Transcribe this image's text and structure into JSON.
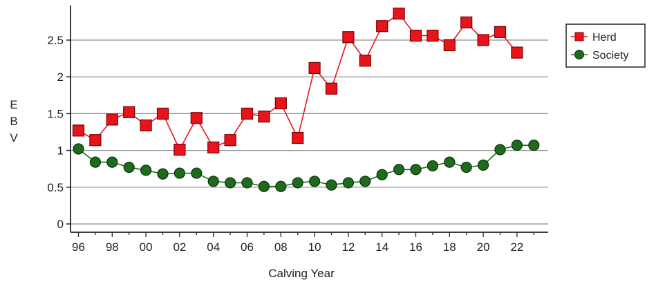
{
  "chart_data": {
    "type": "line",
    "xlabel": "Calving Year",
    "ylabel": "E B V",
    "ylabel_letters": [
      "E",
      "B",
      "V"
    ],
    "x": [
      "96",
      "97",
      "98",
      "99",
      "00",
      "01",
      "02",
      "03",
      "04",
      "05",
      "06",
      "07",
      "08",
      "09",
      "10",
      "11",
      "12",
      "13",
      "14",
      "15",
      "16",
      "17",
      "18",
      "19",
      "20",
      "21",
      "22",
      "23"
    ],
    "x_tick_labels": [
      "96",
      "98",
      "00",
      "02",
      "04",
      "06",
      "08",
      "10",
      "12",
      "14",
      "16",
      "18",
      "20",
      "22"
    ],
    "y_ticks": [
      "0",
      "0.5",
      "1",
      "1.5",
      "2",
      "2.5"
    ],
    "ylim": [
      -0.1,
      2.95
    ],
    "grid": true,
    "legend_position": "top-right",
    "series": [
      {
        "name": "Herd",
        "color": "#e8141c",
        "marker": "square",
        "values": [
          1.27,
          1.14,
          1.42,
          1.52,
          1.34,
          1.5,
          1.01,
          1.44,
          1.04,
          1.14,
          1.5,
          1.46,
          1.64,
          1.17,
          2.12,
          1.84,
          2.54,
          2.22,
          2.69,
          2.86,
          2.56,
          2.56,
          2.43,
          2.74,
          2.5,
          2.61,
          2.33,
          null
        ]
      },
      {
        "name": "Society",
        "color": "#1e6b1e",
        "marker": "circle",
        "values": [
          1.02,
          0.84,
          0.84,
          0.77,
          0.73,
          0.68,
          0.69,
          0.69,
          0.58,
          0.56,
          0.56,
          0.51,
          0.51,
          0.56,
          0.58,
          0.53,
          0.56,
          0.58,
          0.67,
          0.74,
          0.74,
          0.79,
          0.84,
          0.77,
          0.8,
          1.01,
          1.07,
          1.07
        ]
      }
    ]
  }
}
